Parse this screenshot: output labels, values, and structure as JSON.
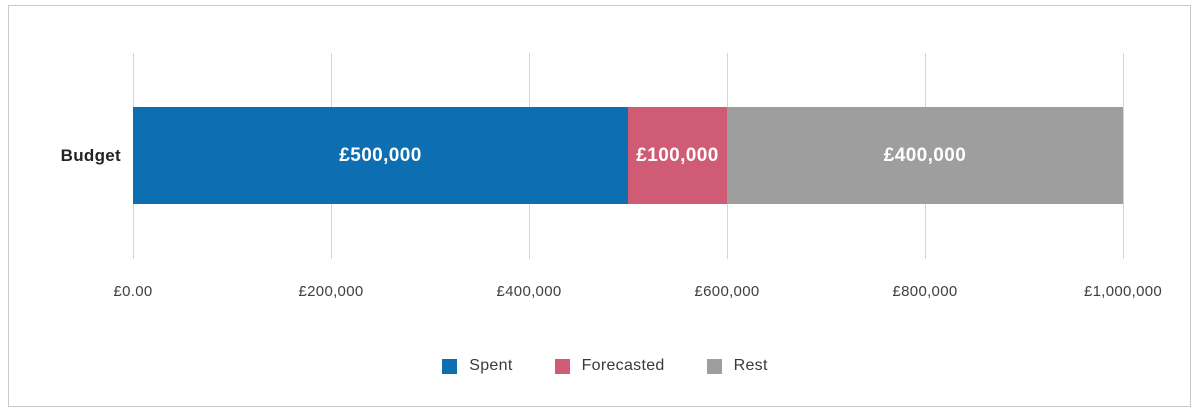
{
  "chart_data": {
    "type": "bar",
    "orientation": "horizontal",
    "stacked": true,
    "title": "",
    "categories": [
      "Budget"
    ],
    "series": [
      {
        "name": "Spent",
        "value": 500000,
        "label": "£500,000",
        "color": "#0d6eb2"
      },
      {
        "name": "Forecasted",
        "value": 100000,
        "label": "£100,000",
        "color": "#cf5c74"
      },
      {
        "name": "Rest",
        "value": 400000,
        "label": "£400,000",
        "color": "#9e9e9e"
      }
    ],
    "x_axis": {
      "min": 0,
      "max": 1000000,
      "ticks": [
        {
          "value": 0,
          "label": "£0.00"
        },
        {
          "value": 200000,
          "label": "£200,000"
        },
        {
          "value": 400000,
          "label": "£400,000"
        },
        {
          "value": 600000,
          "label": "£600,000"
        },
        {
          "value": 800000,
          "label": "£800,000"
        },
        {
          "value": 1000000,
          "label": "£1,000,000"
        }
      ]
    },
    "legend": {
      "position": "bottom",
      "items": [
        "Spent",
        "Forecasted",
        "Rest"
      ]
    },
    "grid": true,
    "panel_border_color": "#c9c9c9",
    "gridline_color": "#d6d6d6"
  }
}
